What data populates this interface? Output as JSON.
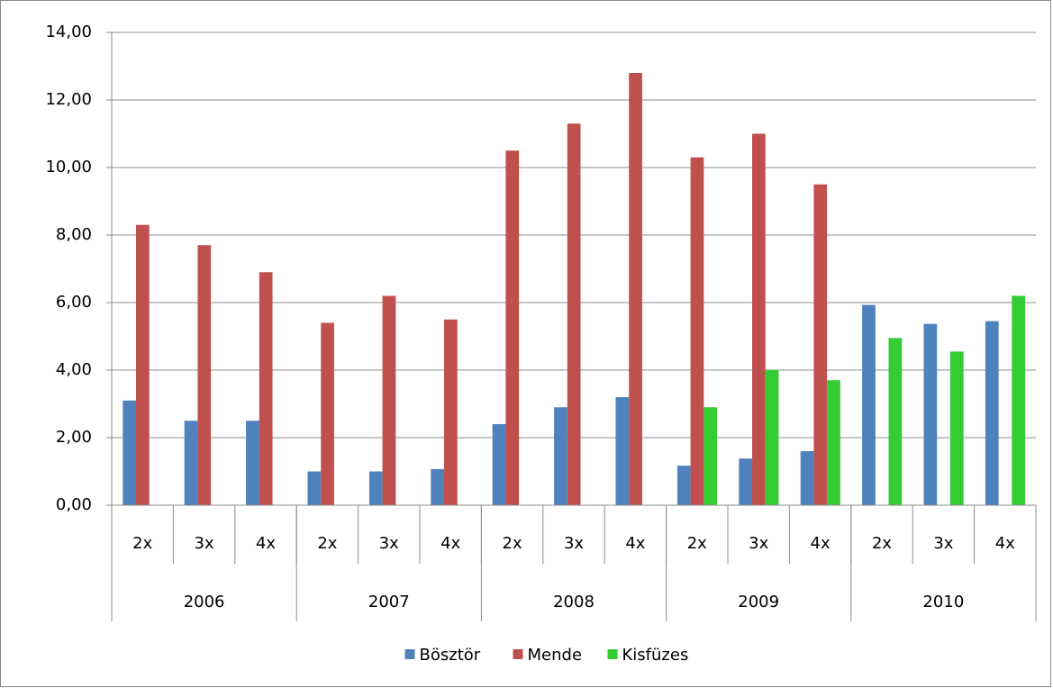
{
  "chart_data": {
    "type": "bar",
    "categories": [
      "2x",
      "3x",
      "4x",
      "2x",
      "3x",
      "4x",
      "2x",
      "3x",
      "4x",
      "2x",
      "3x",
      "4x",
      "2x",
      "3x",
      "4x"
    ],
    "category_groups": [
      "2006",
      "2007",
      "2008",
      "2009",
      "2010"
    ],
    "series": [
      {
        "name": "Bösztör",
        "color": "#4f81bd",
        "values": [
          3.1,
          2.5,
          2.5,
          1.0,
          1.0,
          1.07,
          2.4,
          2.9,
          3.2,
          1.17,
          1.38,
          1.6,
          5.93,
          5.37,
          5.45
        ]
      },
      {
        "name": "Mende",
        "color": "#c0504d",
        "values": [
          8.3,
          7.7,
          6.9,
          5.4,
          6.2,
          5.5,
          10.5,
          11.3,
          12.8,
          10.3,
          11.0,
          9.5,
          null,
          null,
          null
        ]
      },
      {
        "name": "Kisfüzes",
        "color": "#33cc33",
        "values": [
          null,
          null,
          null,
          null,
          null,
          null,
          null,
          null,
          null,
          2.9,
          4.0,
          3.7,
          4.95,
          4.55,
          6.2
        ]
      }
    ],
    "ylim": [
      0,
      14
    ],
    "yticks": [
      {
        "value": 0,
        "label": "0,00"
      },
      {
        "value": 2,
        "label": "2,00"
      },
      {
        "value": 4,
        "label": "4,00"
      },
      {
        "value": 6,
        "label": "6,00"
      },
      {
        "value": 8,
        "label": "8,00"
      },
      {
        "value": 10,
        "label": "10,00"
      },
      {
        "value": 12,
        "label": "12,00"
      },
      {
        "value": 14,
        "label": "14,00"
      }
    ],
    "grid": true,
    "legend": "bottom"
  }
}
